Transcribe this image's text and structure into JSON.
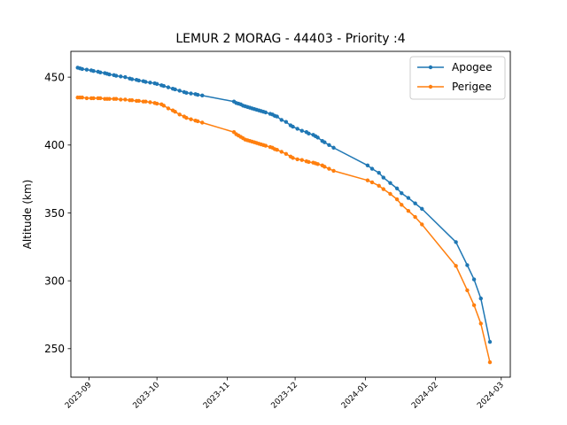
{
  "chart_data": {
    "type": "line",
    "title": "LEMUR 2 MORAG - 44403 - Priority :4",
    "xlabel": "",
    "ylabel": "Altitude (km)",
    "xlim": [
      "2023-08-24",
      "2024-03-05"
    ],
    "ylim": [
      229,
      469
    ],
    "x_ticks": [
      "2023-09",
      "2023-10",
      "2023-11",
      "2023-12",
      "2024-01",
      "2024-02",
      "2024-03"
    ],
    "y_ticks": [
      250,
      300,
      350,
      400,
      450
    ],
    "grid": false,
    "legend": "top-right",
    "series": [
      {
        "name": "Apogee",
        "color": "#1f77b4",
        "points": [
          [
            "2023-08-27",
            457
          ],
          [
            "2023-08-28",
            456.5
          ],
          [
            "2023-08-29",
            456
          ],
          [
            "2023-08-31",
            455.5
          ],
          [
            "2023-09-02",
            455
          ],
          [
            "2023-09-03",
            454.5
          ],
          [
            "2023-09-05",
            454
          ],
          [
            "2023-09-06",
            453.5
          ],
          [
            "2023-09-08",
            453
          ],
          [
            "2023-09-09",
            452.5
          ],
          [
            "2023-09-10",
            452
          ],
          [
            "2023-09-12",
            451.5
          ],
          [
            "2023-09-13",
            451
          ],
          [
            "2023-09-15",
            450.5
          ],
          [
            "2023-09-17",
            450
          ],
          [
            "2023-09-19",
            449
          ],
          [
            "2023-09-20",
            448.5
          ],
          [
            "2023-09-22",
            448
          ],
          [
            "2023-09-23",
            447.5
          ],
          [
            "2023-09-25",
            447
          ],
          [
            "2023-09-26",
            446.5
          ],
          [
            "2023-09-28",
            446
          ],
          [
            "2023-09-30",
            445.5
          ],
          [
            "2023-10-01",
            445
          ],
          [
            "2023-10-03",
            444
          ],
          [
            "2023-10-04",
            443.5
          ],
          [
            "2023-10-06",
            442.5
          ],
          [
            "2023-10-08",
            441.5
          ],
          [
            "2023-10-09",
            441
          ],
          [
            "2023-10-11",
            440
          ],
          [
            "2023-10-13",
            439
          ],
          [
            "2023-10-14",
            438.5
          ],
          [
            "2023-10-16",
            438
          ],
          [
            "2023-10-18",
            437.5
          ],
          [
            "2023-10-19",
            437
          ],
          [
            "2023-10-21",
            436.5
          ],
          [
            "2023-11-04",
            432
          ],
          [
            "2023-11-05",
            431
          ],
          [
            "2023-11-06",
            430.5
          ],
          [
            "2023-11-07",
            430
          ],
          [
            "2023-11-08",
            429
          ],
          [
            "2023-11-09",
            428.5
          ],
          [
            "2023-11-10",
            428
          ],
          [
            "2023-11-11",
            427.5
          ],
          [
            "2023-11-12",
            427
          ],
          [
            "2023-11-13",
            426.5
          ],
          [
            "2023-11-14",
            426
          ],
          [
            "2023-11-15",
            425.5
          ],
          [
            "2023-11-16",
            425
          ],
          [
            "2023-11-17",
            424.5
          ],
          [
            "2023-11-18",
            424
          ],
          [
            "2023-11-20",
            423
          ],
          [
            "2023-11-21",
            422.5
          ],
          [
            "2023-11-22",
            421.5
          ],
          [
            "2023-11-23",
            421
          ],
          [
            "2023-11-25",
            418.5
          ],
          [
            "2023-11-27",
            417
          ],
          [
            "2023-11-29",
            414.5
          ],
          [
            "2023-11-30",
            413.5
          ],
          [
            "2023-12-02",
            412
          ],
          [
            "2023-12-04",
            410.5
          ],
          [
            "2023-12-06",
            409.5
          ],
          [
            "2023-12-07",
            408.5
          ],
          [
            "2023-12-09",
            407.5
          ],
          [
            "2023-12-10",
            406.5
          ],
          [
            "2023-12-11",
            405.5
          ],
          [
            "2023-12-13",
            403
          ],
          [
            "2023-12-14",
            402
          ],
          [
            "2023-12-16",
            400
          ],
          [
            "2023-12-18",
            398
          ],
          [
            "2024-01-02",
            385
          ],
          [
            "2024-01-04",
            382.5
          ],
          [
            "2024-01-07",
            379.5
          ],
          [
            "2024-01-09",
            376
          ],
          [
            "2024-01-12",
            372
          ],
          [
            "2024-01-15",
            368
          ],
          [
            "2024-01-17",
            364.5
          ],
          [
            "2024-01-20",
            361
          ],
          [
            "2024-01-23",
            357
          ],
          [
            "2024-01-26",
            353
          ],
          [
            "2024-02-10",
            328.5
          ],
          [
            "2024-02-15",
            311.5
          ],
          [
            "2024-02-18",
            301
          ],
          [
            "2024-02-21",
            287
          ],
          [
            "2024-02-25",
            255
          ]
        ]
      },
      {
        "name": "Perigee",
        "color": "#ff7f0e",
        "points": [
          [
            "2023-08-27",
            435
          ],
          [
            "2023-08-28",
            435
          ],
          [
            "2023-08-29",
            435
          ],
          [
            "2023-08-31",
            434.5
          ],
          [
            "2023-09-02",
            434.5
          ],
          [
            "2023-09-03",
            434.5
          ],
          [
            "2023-09-05",
            434.5
          ],
          [
            "2023-09-06",
            434.5
          ],
          [
            "2023-09-08",
            434
          ],
          [
            "2023-09-09",
            434
          ],
          [
            "2023-09-10",
            434
          ],
          [
            "2023-09-12",
            434
          ],
          [
            "2023-09-13",
            434
          ],
          [
            "2023-09-15",
            433.5
          ],
          [
            "2023-09-17",
            433.5
          ],
          [
            "2023-09-19",
            433
          ],
          [
            "2023-09-20",
            433
          ],
          [
            "2023-09-22",
            432.5
          ],
          [
            "2023-09-23",
            432.5
          ],
          [
            "2023-09-25",
            432
          ],
          [
            "2023-09-26",
            432
          ],
          [
            "2023-09-28",
            431.5
          ],
          [
            "2023-09-30",
            431
          ],
          [
            "2023-10-01",
            430.5
          ],
          [
            "2023-10-03",
            430
          ],
          [
            "2023-10-04",
            429
          ],
          [
            "2023-10-06",
            427
          ],
          [
            "2023-10-08",
            425.5
          ],
          [
            "2023-10-09",
            424.5
          ],
          [
            "2023-10-11",
            422.5
          ],
          [
            "2023-10-13",
            421
          ],
          [
            "2023-10-14",
            420
          ],
          [
            "2023-10-16",
            419
          ],
          [
            "2023-10-18",
            418
          ],
          [
            "2023-10-19",
            417.5
          ],
          [
            "2023-10-21",
            416.5
          ],
          [
            "2023-11-04",
            409.5
          ],
          [
            "2023-11-05",
            408
          ],
          [
            "2023-11-06",
            407
          ],
          [
            "2023-11-07",
            406
          ],
          [
            "2023-11-08",
            405
          ],
          [
            "2023-11-09",
            404
          ],
          [
            "2023-11-10",
            403.5
          ],
          [
            "2023-11-11",
            403
          ],
          [
            "2023-11-12",
            402.5
          ],
          [
            "2023-11-13",
            402
          ],
          [
            "2023-11-14",
            401.5
          ],
          [
            "2023-11-15",
            401
          ],
          [
            "2023-11-16",
            400.5
          ],
          [
            "2023-11-17",
            400
          ],
          [
            "2023-11-18",
            399.5
          ],
          [
            "2023-11-20",
            398.5
          ],
          [
            "2023-11-21",
            398
          ],
          [
            "2023-11-22",
            397
          ],
          [
            "2023-11-23",
            396.5
          ],
          [
            "2023-11-25",
            395
          ],
          [
            "2023-11-27",
            393.5
          ],
          [
            "2023-11-29",
            391.5
          ],
          [
            "2023-11-30",
            390.5
          ],
          [
            "2023-12-02",
            389.5
          ],
          [
            "2023-12-04",
            389
          ],
          [
            "2023-12-06",
            388
          ],
          [
            "2023-12-07",
            387.5
          ],
          [
            "2023-12-09",
            387
          ],
          [
            "2023-12-10",
            386.5
          ],
          [
            "2023-12-11",
            386
          ],
          [
            "2023-12-13",
            385
          ],
          [
            "2023-12-14",
            384
          ],
          [
            "2023-12-16",
            382.5
          ],
          [
            "2023-12-18",
            381
          ],
          [
            "2024-01-02",
            374
          ],
          [
            "2024-01-04",
            372.5
          ],
          [
            "2024-01-07",
            370
          ],
          [
            "2024-01-09",
            367.5
          ],
          [
            "2024-01-12",
            364
          ],
          [
            "2024-01-15",
            360
          ],
          [
            "2024-01-17",
            356
          ],
          [
            "2024-01-20",
            351.5
          ],
          [
            "2024-01-23",
            347
          ],
          [
            "2024-01-26",
            341.5
          ],
          [
            "2024-02-10",
            311
          ],
          [
            "2024-02-15",
            293
          ],
          [
            "2024-02-18",
            282
          ],
          [
            "2024-02-21",
            268.5
          ],
          [
            "2024-02-25",
            240
          ]
        ]
      }
    ]
  }
}
